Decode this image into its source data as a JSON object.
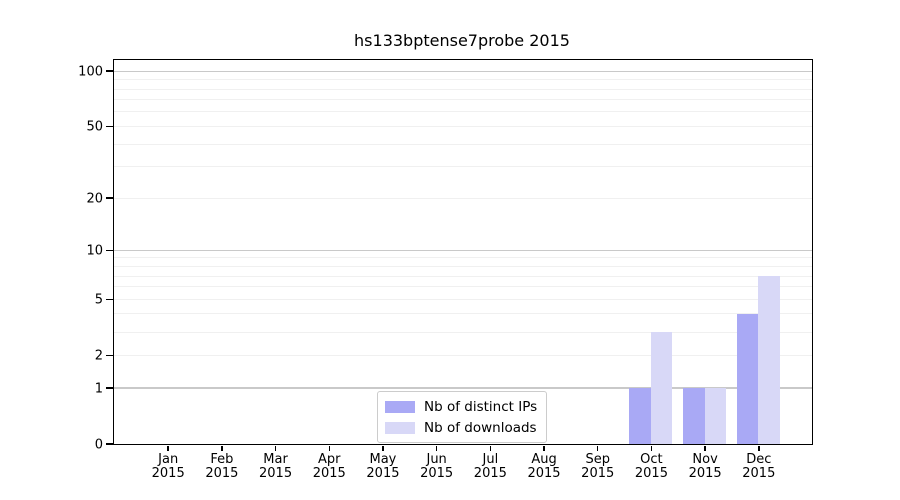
{
  "chart_data": {
    "type": "bar",
    "title": "hs133bptense7probe 2015",
    "categories": [
      "Jan",
      "Feb",
      "Mar",
      "Apr",
      "May",
      "Jun",
      "Jul",
      "Aug",
      "Sep",
      "Oct",
      "Nov",
      "Dec"
    ],
    "category_year": "2015",
    "series": [
      {
        "name": "Nb of distinct IPs",
        "color": "#a9a9f5",
        "values": [
          0,
          0,
          0,
          0,
          0,
          0,
          0,
          0,
          0,
          1,
          1,
          4
        ]
      },
      {
        "name": "Nb of downloads",
        "color": "#d8d8f7",
        "values": [
          0,
          0,
          0,
          0,
          0,
          0,
          0,
          0,
          0,
          3,
          1,
          7
        ]
      }
    ],
    "yscale": "log1p",
    "ylim": [
      0,
      115
    ],
    "y_ticks": [
      0,
      1,
      2,
      5,
      10,
      20,
      50,
      100
    ],
    "grid_major": [
      1,
      10,
      100
    ],
    "grid_minor": [
      2,
      3,
      4,
      5,
      6,
      7,
      8,
      9,
      20,
      30,
      40,
      50,
      60,
      70,
      80,
      90
    ],
    "grid": "on",
    "legend_position": "lower-center",
    "xlabel": "",
    "ylabel": ""
  }
}
